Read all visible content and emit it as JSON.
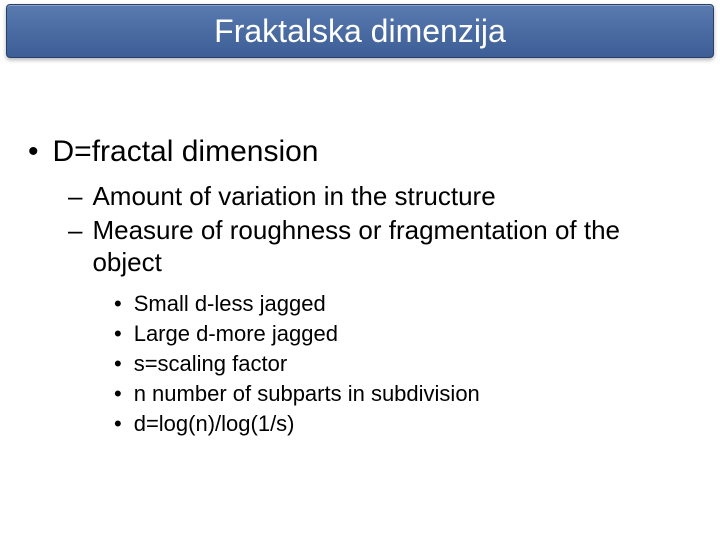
{
  "title": "Fraktalska dimenzija",
  "level1": {
    "text": "D=fractal dimension"
  },
  "level2": [
    {
      "text": "Amount of variation in the structure"
    },
    {
      "text": "Measure of roughness or fragmentation of the object"
    }
  ],
  "level3": [
    {
      "text": "Small d-less jagged"
    },
    {
      "text": "Large d-more jagged"
    },
    {
      "text": "s=scaling factor"
    },
    {
      "text": "n number of subparts in subdivision"
    },
    {
      "text": "d=log(n)/log(1/s)"
    }
  ],
  "colors": {
    "title_bar_bg_top": "#5a7bb0",
    "title_bar_bg_mid": "#4a6ca3",
    "title_bar_bg_bot": "#3d5e96",
    "title_bar_border": "#2a3f6a",
    "title_text": "#ffffff",
    "body_bg": "#ffffff",
    "text": "#000000"
  },
  "typography": {
    "title_fontsize": 32,
    "level1_fontsize": 30,
    "level2_fontsize": 26,
    "level3_fontsize": 22,
    "font_family": "Arial"
  }
}
